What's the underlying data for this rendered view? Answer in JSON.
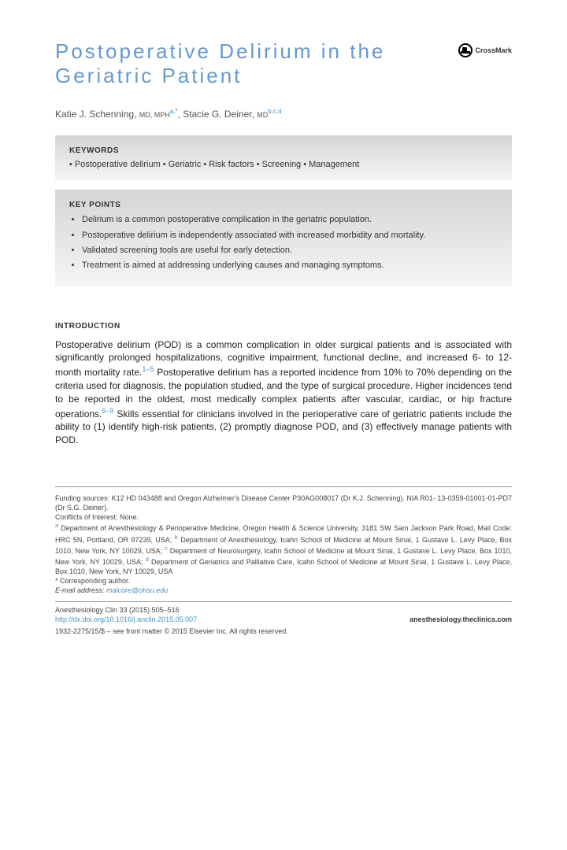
{
  "title": "Postoperative Delirium in the Geriatric Patient",
  "crossmark_label": "CrossMark",
  "authors_html": {
    "a1_name": "Katie J. Schenning, ",
    "a1_deg": "MD, MPH",
    "a1_aff": "a,",
    "a1_star": "*",
    "sep": ", ",
    "a2_name": "Stacie G. Deiner, ",
    "a2_deg": "MD",
    "a2_aff": "b,c,d"
  },
  "keywords": {
    "heading": "KEYWORDS",
    "line": "• Postoperative delirium • Geriatric • Risk factors • Screening • Management"
  },
  "keypoints": {
    "heading": "KEY POINTS",
    "items": [
      "Delirium is a common postoperative complication in the geriatric population.",
      "Postoperative delirium is independently associated with increased morbidity and mortality.",
      "Validated screening tools are useful for early detection.",
      "Treatment is aimed at addressing underlying causes and managing symptoms."
    ]
  },
  "intro": {
    "heading": "INTRODUCTION",
    "p1a": "Postoperative delirium (POD) is a common complication in older surgical patients and is associated with significantly prolonged hospitalizations, cognitive impairment, functional decline, and increased 6- to 12-month mortality rate.",
    "c1": "1–5",
    "p1b": " Postoperative delirium has a reported incidence from 10% to 70% depending on the criteria used for diagnosis, the population studied, and the type of surgical procedure. Higher incidences tend to be reported in the oldest, most medically complex patients after vascular, cardiac, or hip fracture operations.",
    "c2": "6–9",
    "p1c": " Skills essential for clinicians involved in the perioperative care of geriatric patients include the ability to (1) identify high-risk patients, (2) promptly diagnose POD, and (3) effectively manage patients with POD."
  },
  "footer": {
    "funding": "Funding sources: K12 HD 043488 and Oregon Alzheimer's Disease Center P30AG008017 (Dr K.J. Schenning). NIA R01- 13-0359-01001-01-PD7 (Dr S.G. Deiner).",
    "coi": "Conflicts of Interest: None.",
    "aff_a_label": "a",
    "aff_a": " Department of Anesthesiology & Perioperative Medicine, Oregon Health & Science University, 3181 SW Sam Jackson Park Road, Mail Code: HRC 5N, Portland, OR 97239, USA; ",
    "aff_b_label": "b",
    "aff_b": " Department of Anesthesiology, Icahn School of Medicine at Mount Sinai, 1 Gustave L. Levy Place, Box 1010, New York, NY 10029, USA; ",
    "aff_c_label": "c",
    "aff_c": " Department of Neurosurgery, Icahn School of Medicine at Mount Sinai, 1 Gustave L. Levy Place, Box 1010, New York, NY 10029, USA; ",
    "aff_d_label": "d",
    "aff_d": " Department of Geriatrics and Palliative Care, Icahn School of Medicine at Mount Sinai, 1 Gustave L. Levy Place, Box 1010, New York, NY 10029, USA",
    "corr": "* Corresponding author.",
    "email_label": "E-mail address: ",
    "email": "malcore@ohsu.edu",
    "journal": "Anesthesiology Clin 33 (2015) 505–516",
    "doi": "http://dx.doi.org/10.1016/j.anclin.2015.05.007",
    "site": "anesthesiology.theclinics.com",
    "copyright": "1932-2275/15/$ – see front matter © 2015 Elsevier Inc. All rights reserved."
  }
}
